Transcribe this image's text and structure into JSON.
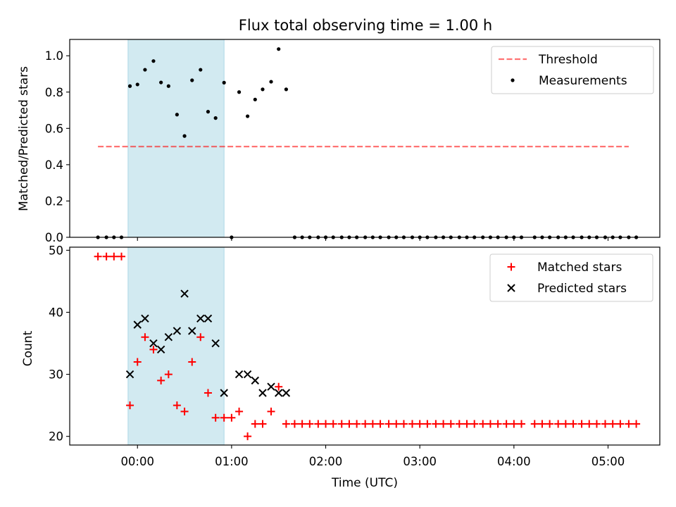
{
  "title": "Flux total observing time = 1.00 h",
  "colors": {
    "span": "#add8e6",
    "threshold": "#ff0000",
    "measurement": "#000000",
    "matched": "#ff0000",
    "predicted": "#000000"
  },
  "chart_data": [
    {
      "type": "scatter",
      "panel": "top",
      "ylabel": "Matched/Predicted stars",
      "xlabel": "",
      "xlim": [
        -0.72,
        5.55
      ],
      "ylim": [
        0,
        1.09
      ],
      "yticks": [
        0.0,
        0.2,
        0.4,
        0.6,
        0.8,
        1.0
      ],
      "ytick_labels": [
        "0.0",
        "0.2",
        "0.4",
        "0.6",
        "0.8",
        "1.0"
      ],
      "xticks": [
        0,
        1,
        2,
        3,
        4,
        5
      ],
      "shaded_span": [
        -0.1,
        0.92
      ],
      "threshold": {
        "name": "Threshold",
        "y": 0.5,
        "x_range": [
          -0.42,
          5.22
        ],
        "style": "dashed"
      },
      "legend": [
        "Threshold",
        "Measurements"
      ],
      "legend_position": "top-right",
      "series": [
        {
          "name": "Measurements",
          "marker": "dot",
          "x": [
            -0.42,
            -0.33,
            -0.25,
            -0.17,
            -0.08,
            0.0,
            0.08,
            0.17,
            0.25,
            0.33,
            0.42,
            0.5,
            0.58,
            0.67,
            0.75,
            0.83,
            0.92,
            1.0,
            1.08,
            1.17,
            1.25,
            1.33,
            1.42,
            1.5,
            1.58,
            1.67,
            1.75,
            1.83,
            1.92,
            2.0,
            2.08,
            2.17,
            2.25,
            2.33,
            2.42,
            2.5,
            2.58,
            2.67,
            2.75,
            2.83,
            2.92,
            3.0,
            3.08,
            3.17,
            3.25,
            3.33,
            3.42,
            3.5,
            3.58,
            3.67,
            3.75,
            3.83,
            3.92,
            4.0,
            4.08,
            4.22,
            4.3,
            4.38,
            4.47,
            4.55,
            4.63,
            4.72,
            4.8,
            4.88,
            4.97,
            5.05,
            5.13,
            5.22,
            5.3
          ],
          "y": [
            0,
            0,
            0,
            0,
            0.833,
            0.842,
            0.923,
            0.971,
            0.853,
            0.833,
            0.676,
            0.558,
            0.865,
            0.923,
            0.692,
            0.657,
            0.852,
            0,
            0.8,
            0.667,
            0.759,
            0.815,
            0.857,
            1.037,
            0.815,
            0,
            0,
            0,
            0,
            0,
            0,
            0,
            0,
            0,
            0,
            0,
            0,
            0,
            0,
            0,
            0,
            0,
            0,
            0,
            0,
            0,
            0,
            0,
            0,
            0,
            0,
            0,
            0,
            0,
            0,
            0,
            0,
            0,
            0,
            0,
            0,
            0,
            0,
            0,
            0,
            0,
            0,
            0,
            0
          ]
        }
      ]
    },
    {
      "type": "scatter",
      "panel": "bottom",
      "ylabel": "Count",
      "xlabel": "Time (UTC)",
      "xlim": [
        -0.72,
        5.55
      ],
      "ylim": [
        18.6,
        50.5
      ],
      "yticks": [
        20,
        30,
        40,
        50
      ],
      "ytick_labels": [
        "20",
        "30",
        "40",
        "50"
      ],
      "xticks": [
        0,
        1,
        2,
        3,
        4,
        5
      ],
      "xtick_labels": [
        "00:00",
        "01:00",
        "02:00",
        "03:00",
        "04:00",
        "05:00"
      ],
      "shaded_span": [
        -0.1,
        0.92
      ],
      "legend": [
        "Matched stars",
        "Predicted stars"
      ],
      "legend_position": "top-right",
      "series": [
        {
          "name": "Matched stars",
          "marker": "plus",
          "x": [
            -0.42,
            -0.33,
            -0.25,
            -0.17,
            -0.08,
            0.0,
            0.08,
            0.17,
            0.25,
            0.33,
            0.42,
            0.5,
            0.58,
            0.67,
            0.75,
            0.83,
            0.92,
            1.0,
            1.08,
            1.17,
            1.25,
            1.33,
            1.42,
            1.5,
            1.58,
            1.67,
            1.75,
            1.83,
            1.92,
            2.0,
            2.08,
            2.17,
            2.25,
            2.33,
            2.42,
            2.5,
            2.58,
            2.67,
            2.75,
            2.83,
            2.92,
            3.0,
            3.08,
            3.17,
            3.25,
            3.33,
            3.42,
            3.5,
            3.58,
            3.67,
            3.75,
            3.83,
            3.92,
            4.0,
            4.08,
            4.22,
            4.3,
            4.38,
            4.47,
            4.55,
            4.63,
            4.72,
            4.8,
            4.88,
            4.97,
            5.05,
            5.13,
            5.22,
            5.3
          ],
          "y": [
            49,
            49,
            49,
            49,
            25,
            32,
            36,
            34,
            29,
            30,
            25,
            24,
            32,
            36,
            27,
            23,
            23,
            23,
            24,
            20,
            22,
            22,
            24,
            28,
            22,
            22,
            22,
            22,
            22,
            22,
            22,
            22,
            22,
            22,
            22,
            22,
            22,
            22,
            22,
            22,
            22,
            22,
            22,
            22,
            22,
            22,
            22,
            22,
            22,
            22,
            22,
            22,
            22,
            22,
            22,
            22,
            22,
            22,
            22,
            22,
            22,
            22,
            22,
            22,
            22,
            22,
            22,
            22,
            22
          ]
        },
        {
          "name": "Predicted stars",
          "marker": "x",
          "x": [
            -0.08,
            0.0,
            0.08,
            0.17,
            0.25,
            0.33,
            0.42,
            0.5,
            0.58,
            0.67,
            0.75,
            0.83,
            0.92,
            1.08,
            1.17,
            1.25,
            1.33,
            1.42,
            1.5,
            1.58
          ],
          "y": [
            30,
            38,
            39,
            35,
            34,
            36,
            37,
            43,
            37,
            39,
            39,
            35,
            27,
            30,
            30,
            29,
            27,
            28,
            27,
            27
          ]
        }
      ]
    }
  ]
}
